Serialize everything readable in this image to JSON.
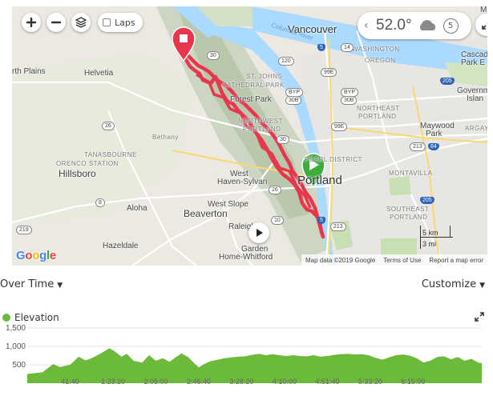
{
  "map": {
    "laps_label": "Laps",
    "weather": {
      "temperature": "52.0°",
      "wind": "5"
    },
    "labels": {
      "vancouver": "Vancouver",
      "washington": "WASHINGTON",
      "oregon": "OREGON",
      "columbia_river": "Columbia River",
      "portland": "Portland",
      "hillsboro": "Hillsboro",
      "aloha": "Aloha",
      "beaverton": "Beaverton",
      "hazeldale": "Hazeldale",
      "helvetia": "Helvetia",
      "plains": "rth Plains",
      "bethany": "Bethany",
      "tanasbourne": "TANASBOURNE",
      "orenco": "ORENCO STATION",
      "west_haven": "West",
      "west_haven2": "Haven-Sylvan",
      "west_slope": "West Slope",
      "raleigh": "Raleigh",
      "garden_home": "Garden",
      "garden_home2": "Home-Whitford",
      "st_johns": "ST. JOHNS",
      "cathedral_park": "CATHEDRAL PARK",
      "forest_park": "Forest Park",
      "northwest": "NORTHWEST",
      "portland_nw": "PORTLAND",
      "pearl": "PEARL DISTRICT",
      "northeast": "NORTHEAST",
      "northeast2": "PORTLAND",
      "maywood": "Maywood",
      "maywood2": "Park",
      "argay": "ARGAY",
      "montavilla": "MONTAVILLA",
      "southeast": "SOUTHEAST",
      "southeast2": "PORTLAND",
      "cascade": "Cascad",
      "cascade2": "Park E",
      "government": "Governm",
      "government2": "Islan",
      "m": "M"
    },
    "shields": {
      "r30": "30",
      "r120": "120",
      "r99e": "99E",
      "r30b": "30B",
      "r99e2": "99E",
      "r26": "26",
      "r30c": "30",
      "r26b": "26",
      "r8": "8",
      "r10": "10",
      "r219": "219",
      "r213": "213",
      "r213b": "213",
      "i5": "5",
      "i5b": "5",
      "i205": "205",
      "i205b": "205",
      "i84": "84",
      "r14": "14",
      "byp": "BYP",
      "byp2": "BYP",
      "r30d": "30B"
    },
    "scale": {
      "km": "5 km",
      "mi": "3 mi"
    },
    "footer": {
      "attribution": "Map data ©2019 Google",
      "terms": "Terms of Use",
      "report": "Report a map error"
    },
    "google": [
      "G",
      "o",
      "o",
      "g",
      "l",
      "e"
    ]
  },
  "controls": {
    "over_time": "Over Time",
    "customize": "Customize"
  },
  "chart_data": {
    "type": "area",
    "series": [
      {
        "name": "Elevation"
      }
    ],
    "x_ticks": [
      "41:40",
      "1:23:20",
      "2:05:00",
      "2:46:40",
      "3:28:20",
      "4:10:00",
      "4:51:40",
      "5:33:20",
      "6:15:00"
    ],
    "y_ticks": [
      "1,500",
      "1,000",
      "500"
    ],
    "ylim": [
      0,
      1500
    ],
    "x_end_seconds": 26500,
    "points": [
      [
        0,
        250
      ],
      [
        900,
        300
      ],
      [
        1500,
        520
      ],
      [
        1900,
        440
      ],
      [
        2500,
        500
      ],
      [
        3000,
        720
      ],
      [
        3400,
        620
      ],
      [
        3800,
        690
      ],
      [
        4400,
        840
      ],
      [
        4800,
        950
      ],
      [
        5100,
        860
      ],
      [
        5500,
        720
      ],
      [
        5800,
        800
      ],
      [
        6200,
        610
      ],
      [
        6700,
        560
      ],
      [
        7100,
        760
      ],
      [
        7500,
        610
      ],
      [
        7900,
        680
      ],
      [
        8300,
        580
      ],
      [
        8700,
        720
      ],
      [
        9000,
        810
      ],
      [
        9400,
        700
      ],
      [
        9700,
        560
      ],
      [
        10000,
        430
      ],
      [
        10300,
        520
      ],
      [
        10700,
        600
      ],
      [
        11100,
        640
      ],
      [
        11500,
        680
      ],
      [
        11900,
        700
      ],
      [
        12300,
        720
      ],
      [
        12700,
        730
      ],
      [
        13100,
        770
      ],
      [
        13500,
        800
      ],
      [
        13900,
        760
      ],
      [
        14300,
        790
      ],
      [
        14700,
        760
      ],
      [
        15100,
        740
      ],
      [
        15500,
        760
      ],
      [
        15900,
        740
      ],
      [
        16300,
        730
      ],
      [
        16700,
        760
      ],
      [
        17100,
        720
      ],
      [
        17500,
        740
      ],
      [
        17900,
        770
      ],
      [
        18300,
        790
      ],
      [
        18700,
        800
      ],
      [
        19100,
        780
      ],
      [
        19500,
        790
      ],
      [
        19900,
        760
      ],
      [
        20300,
        690
      ],
      [
        20700,
        640
      ],
      [
        21100,
        700
      ],
      [
        21500,
        760
      ],
      [
        21900,
        780
      ],
      [
        22300,
        750
      ],
      [
        22700,
        680
      ],
      [
        23100,
        560
      ],
      [
        23500,
        610
      ],
      [
        23900,
        710
      ],
      [
        24300,
        730
      ],
      [
        24700,
        650
      ],
      [
        25100,
        710
      ],
      [
        25500,
        610
      ],
      [
        25900,
        660
      ],
      [
        26300,
        560
      ],
      [
        26500,
        550
      ]
    ]
  },
  "colors": {
    "elevation": "#6cba3a",
    "route": "#e8364d"
  }
}
